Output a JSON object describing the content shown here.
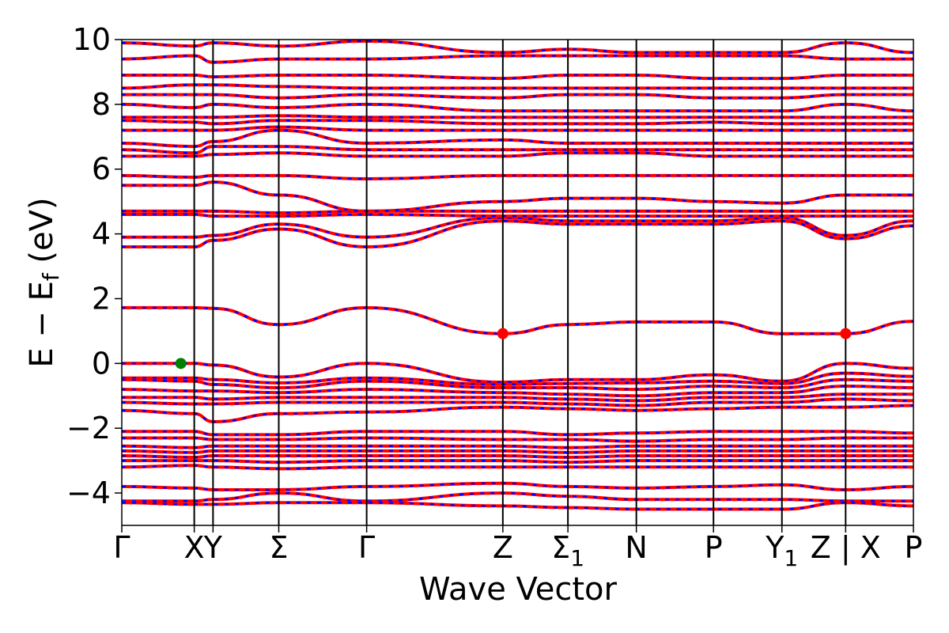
{
  "chart_data": {
    "type": "line",
    "title": "",
    "xlabel": "Wave Vector",
    "ylabel": "E − E",
    "ylabel_sub": "f",
    "ylabel_unit": " (eV)",
    "ylim": [
      -5,
      10
    ],
    "yticks": [
      {
        "value": -4,
        "label": "−4"
      },
      {
        "value": -2,
        "label": "−2"
      },
      {
        "value": 0,
        "label": "0"
      },
      {
        "value": 2,
        "label": "2"
      },
      {
        "value": 4,
        "label": "4"
      },
      {
        "value": 6,
        "label": "6"
      },
      {
        "value": 8,
        "label": "8"
      },
      {
        "value": 10,
        "label": "10"
      }
    ],
    "xlim": [
      0,
      11.8
    ],
    "kpoints": [
      {
        "value": 0.0,
        "label": "Γ"
      },
      {
        "value": 1.08,
        "label": "X"
      },
      {
        "value": 1.36,
        "label": "Y"
      },
      {
        "value": 2.34,
        "label": "Σ"
      },
      {
        "value": 3.65,
        "label": "Γ"
      },
      {
        "value": 5.68,
        "label": "Z"
      },
      {
        "value": 6.65,
        "label": "Σ",
        "sub": "1"
      },
      {
        "value": 7.67,
        "label": "N"
      },
      {
        "value": 8.82,
        "label": "P"
      },
      {
        "value": 9.84,
        "label": "Y",
        "sub": "1"
      },
      {
        "value": 10.79,
        "label": "Z | X"
      },
      {
        "value": 11.8,
        "label": "P"
      }
    ],
    "line_colors": {
      "primary": "#ff0000",
      "secondary": "#0000ff"
    },
    "markers": [
      {
        "name": "VBM",
        "x": 0.88,
        "y": 0.0,
        "color": "#008000"
      },
      {
        "name": "CBM",
        "x": 5.68,
        "y": 0.92,
        "color": "#ff0000"
      },
      {
        "name": "CBM",
        "x": 10.79,
        "y": 0.92,
        "color": "#ff0000"
      }
    ],
    "series": [
      {
        "values": [
          1.72,
          1.72,
          1.7,
          1.2,
          1.72,
          0.92,
          1.2,
          1.28,
          1.28,
          0.92,
          0.92,
          1.3
        ]
      },
      {
        "values": [
          0.0,
          0.0,
          -0.05,
          -0.42,
          0.0,
          -0.58,
          -0.5,
          -0.5,
          -0.35,
          -0.55,
          0.0,
          -0.15
        ]
      },
      {
        "values": [
          -0.45,
          -0.45,
          -0.5,
          -0.6,
          -0.45,
          -0.65,
          -0.62,
          -0.6,
          -0.55,
          -0.62,
          -0.3,
          -0.4
        ]
      },
      {
        "values": [
          -0.5,
          -0.55,
          -0.65,
          -0.75,
          -0.55,
          -0.75,
          -0.75,
          -0.8,
          -0.7,
          -0.75,
          -0.5,
          -0.55
        ]
      },
      {
        "values": [
          -0.8,
          -0.85,
          -0.85,
          -0.9,
          -0.8,
          -0.9,
          -0.95,
          -1.0,
          -0.9,
          -0.9,
          -0.7,
          -0.75
        ]
      },
      {
        "values": [
          -1.05,
          -1.05,
          -1.1,
          -1.05,
          -1.05,
          -1.05,
          -1.1,
          -1.15,
          -1.05,
          -1.05,
          -0.95,
          -0.95
        ]
      },
      {
        "values": [
          -1.2,
          -1.25,
          -1.25,
          -1.2,
          -1.2,
          -1.2,
          -1.25,
          -1.3,
          -1.2,
          -1.2,
          -1.1,
          -1.15
        ]
      },
      {
        "values": [
          -1.45,
          -1.55,
          -1.8,
          -1.55,
          -1.5,
          -1.35,
          -1.4,
          -1.45,
          -1.4,
          -1.35,
          -1.35,
          -1.3
        ]
      },
      {
        "values": [
          -2.1,
          -2.1,
          -2.2,
          -2.2,
          -2.1,
          -2.1,
          -2.2,
          -2.15,
          -2.1,
          -2.1,
          -2.1,
          -2.15
        ]
      },
      {
        "values": [
          -2.3,
          -2.3,
          -2.35,
          -2.35,
          -2.3,
          -2.35,
          -2.35,
          -2.4,
          -2.35,
          -2.35,
          -2.3,
          -2.3
        ]
      },
      {
        "values": [
          -2.55,
          -2.6,
          -2.55,
          -2.55,
          -2.55,
          -2.55,
          -2.6,
          -2.55,
          -2.55,
          -2.55,
          -2.55,
          -2.55
        ]
      },
      {
        "values": [
          -2.7,
          -2.75,
          -2.7,
          -2.7,
          -2.7,
          -2.7,
          -2.75,
          -2.7,
          -2.7,
          -2.7,
          -2.7,
          -2.7
        ]
      },
      {
        "values": [
          -2.85,
          -2.9,
          -2.85,
          -2.85,
          -2.85,
          -2.85,
          -2.9,
          -2.85,
          -2.85,
          -2.85,
          -2.85,
          -2.85
        ]
      },
      {
        "values": [
          -3.0,
          -3.0,
          -3.0,
          -3.05,
          -3.0,
          -3.0,
          -3.05,
          -3.0,
          -3.0,
          -3.0,
          -3.0,
          -3.0
        ]
      },
      {
        "values": [
          -3.2,
          -3.15,
          -3.2,
          -3.25,
          -3.2,
          -3.2,
          -3.2,
          -3.2,
          -3.2,
          -3.2,
          -3.2,
          -3.2
        ]
      },
      {
        "values": [
          -3.8,
          -3.85,
          -3.9,
          -3.9,
          -3.8,
          -3.7,
          -3.8,
          -3.85,
          -3.8,
          -3.75,
          -3.9,
          -3.8
        ]
      },
      {
        "values": [
          -4.25,
          -4.25,
          -4.2,
          -4.0,
          -4.25,
          -4.0,
          -4.1,
          -4.2,
          -4.2,
          -4.2,
          -4.25,
          -4.25
        ]
      },
      {
        "values": [
          -4.3,
          -4.35,
          -4.35,
          -4.3,
          -4.3,
          -4.4,
          -4.45,
          -4.5,
          -4.5,
          -4.5,
          -4.3,
          -4.4
        ]
      },
      {
        "values": [
          3.6,
          3.6,
          3.8,
          4.15,
          3.6,
          4.4,
          4.3,
          4.3,
          4.3,
          4.4,
          3.85,
          4.25
        ]
      },
      {
        "values": [
          3.9,
          3.9,
          3.95,
          4.3,
          3.9,
          4.5,
          4.4,
          4.4,
          4.4,
          4.5,
          3.95,
          4.4
        ]
      },
      {
        "values": [
          4.6,
          4.6,
          4.55,
          4.55,
          4.6,
          4.55,
          4.55,
          4.55,
          4.55,
          4.55,
          4.55,
          4.55
        ]
      },
      {
        "values": [
          4.7,
          4.7,
          4.7,
          4.65,
          4.7,
          4.7,
          4.7,
          4.7,
          4.7,
          4.7,
          4.7,
          4.7
        ]
      },
      {
        "values": [
          5.5,
          5.5,
          5.6,
          5.2,
          4.7,
          5.0,
          5.1,
          5.1,
          5.0,
          4.95,
          5.2,
          5.2
        ]
      },
      {
        "values": [
          5.8,
          5.75,
          5.8,
          5.8,
          5.7,
          5.8,
          5.8,
          5.8,
          5.8,
          5.8,
          5.8,
          5.8
        ]
      },
      {
        "values": [
          6.4,
          6.4,
          6.45,
          6.5,
          6.4,
          6.4,
          6.5,
          6.5,
          6.4,
          6.4,
          6.4,
          6.4
        ]
      },
      {
        "values": [
          6.6,
          6.5,
          6.7,
          6.7,
          6.6,
          6.6,
          6.6,
          6.6,
          6.6,
          6.6,
          6.6,
          6.6
        ]
      },
      {
        "values": [
          6.8,
          6.7,
          6.85,
          7.2,
          6.8,
          6.9,
          6.8,
          6.8,
          6.8,
          6.8,
          6.8,
          6.8
        ]
      },
      {
        "values": [
          7.2,
          7.2,
          7.2,
          7.3,
          7.2,
          7.2,
          7.2,
          7.2,
          7.2,
          7.2,
          7.2,
          7.2
        ]
      },
      {
        "values": [
          7.5,
          7.45,
          7.4,
          7.5,
          7.5,
          7.4,
          7.4,
          7.4,
          7.45,
          7.4,
          7.4,
          7.4
        ]
      },
      {
        "values": [
          7.6,
          7.6,
          7.6,
          7.65,
          7.6,
          7.6,
          7.6,
          7.6,
          7.6,
          7.6,
          7.6,
          7.6
        ]
      },
      {
        "values": [
          8.0,
          7.9,
          8.0,
          7.9,
          8.0,
          7.8,
          7.8,
          7.8,
          7.8,
          7.8,
          8.0,
          7.8
        ]
      },
      {
        "values": [
          8.3,
          8.3,
          8.3,
          8.2,
          8.3,
          8.2,
          8.3,
          8.3,
          8.2,
          8.2,
          8.3,
          8.3
        ]
      },
      {
        "values": [
          8.5,
          8.6,
          8.6,
          8.55,
          8.5,
          8.5,
          8.5,
          8.5,
          8.5,
          8.5,
          8.5,
          8.5
        ]
      },
      {
        "values": [
          8.9,
          8.9,
          8.85,
          8.9,
          8.9,
          8.8,
          8.9,
          8.9,
          8.8,
          8.8,
          8.9,
          8.9
        ]
      },
      {
        "values": [
          9.4,
          9.5,
          9.3,
          9.4,
          9.4,
          9.5,
          9.5,
          9.5,
          9.5,
          9.5,
          9.4,
          9.4
        ]
      },
      {
        "values": [
          9.9,
          9.8,
          9.9,
          9.8,
          9.95,
          9.6,
          9.7,
          9.6,
          9.6,
          9.6,
          9.9,
          9.6
        ]
      }
    ]
  }
}
